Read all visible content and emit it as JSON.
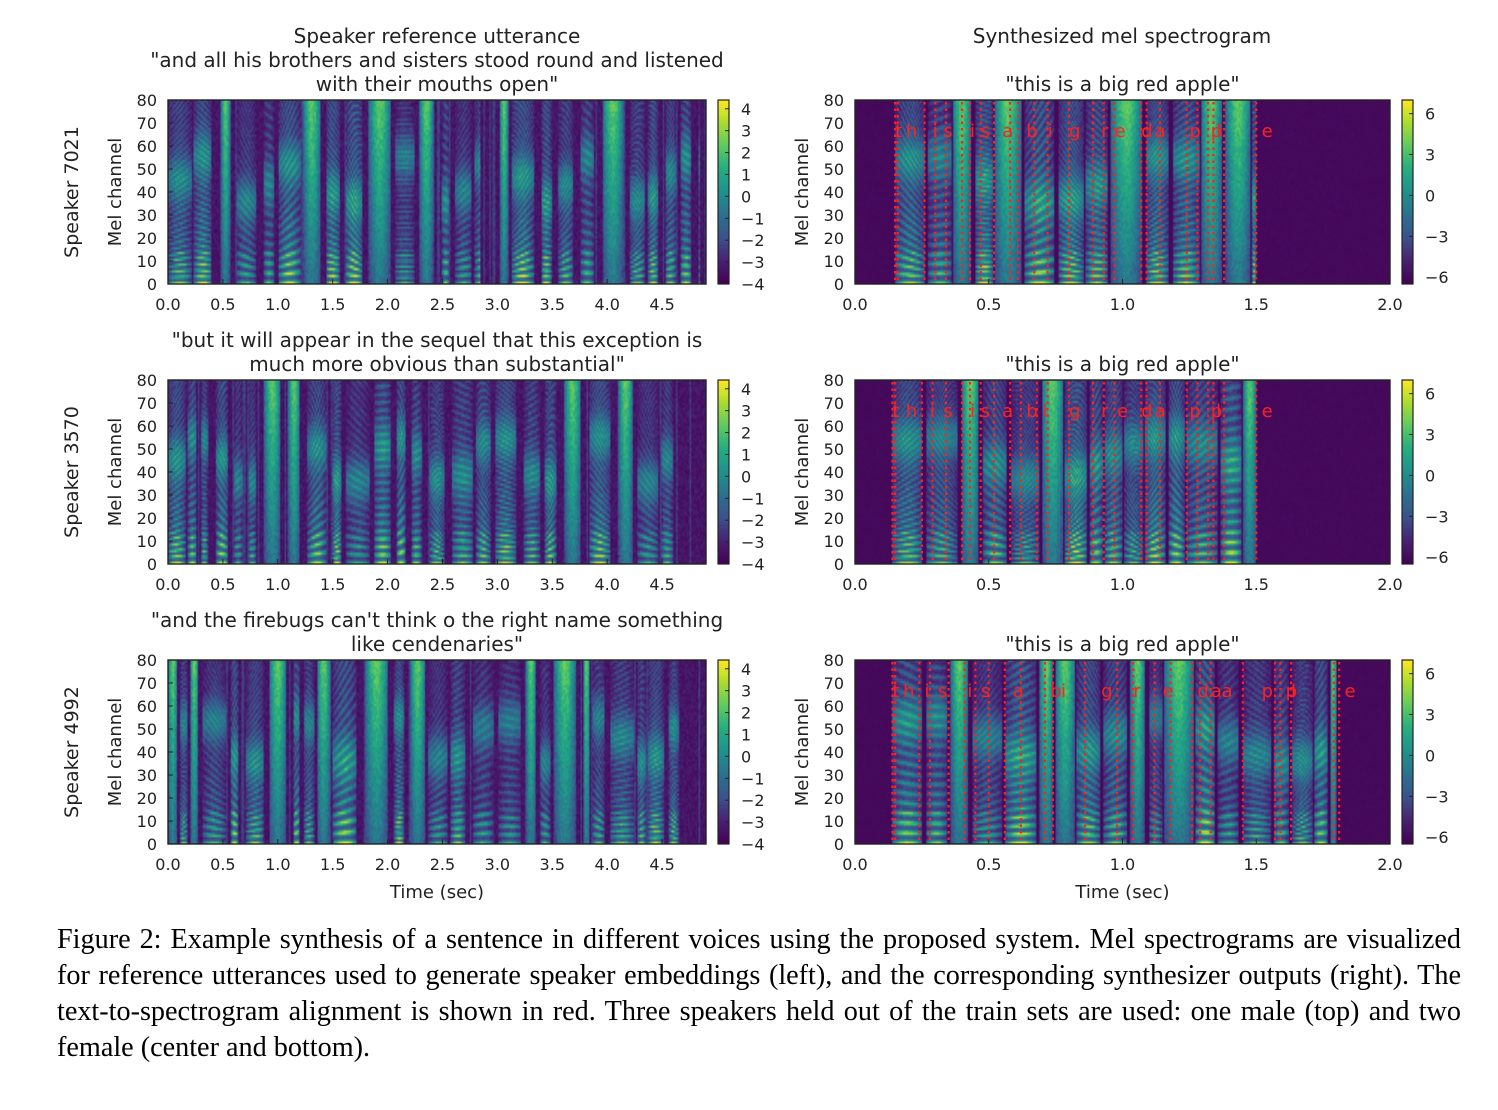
{
  "figure": {
    "left_column_title": "Speaker reference utterance",
    "right_column_title": "Synthesized mel spectrogram",
    "x_axis_label": "Time (sec)",
    "y_axis_label": "Mel channel",
    "caption_label": "Figure 2:",
    "caption_text": "Example synthesis of a sentence in different voices using the proposed system. Mel spectrograms are visualized for reference utterances used to generate speaker embeddings (left), and the corresponding synthesizer outputs (right). The text-to-spectrogram alignment is shown in red. Three speakers held out of the train sets are used: one male (top) and two female (center and bottom)."
  },
  "colors": {
    "viridis_low": "#440154",
    "viridis_mid": "#21918c",
    "viridis_high": "#fde725",
    "alignment": "#ff2020"
  },
  "chart_data": [
    {
      "type": "heatmap",
      "row": 0,
      "column": "reference",
      "speaker": "Speaker 7021",
      "title": "\"and all his brothers and sisters stood round and listened with their mouths open\"",
      "title_lines": [
        "\"and all his brothers and sisters stood round and listened",
        "with their mouths open\""
      ],
      "xlabel": "",
      "ylabel": "Mel channel",
      "xlim": [
        0,
        4.9
      ],
      "ylim": [
        0,
        80
      ],
      "xticks": [
        0.0,
        0.5,
        1.0,
        1.5,
        2.0,
        2.5,
        3.0,
        3.5,
        4.0,
        4.5
      ],
      "yticks": [
        0,
        10,
        20,
        30,
        40,
        50,
        60,
        70,
        80
      ],
      "colorbar_range": [
        -4,
        4.4
      ],
      "colorbar_ticks": [
        4,
        3,
        2,
        1,
        0,
        -1,
        -2,
        -3,
        -4
      ],
      "speech_region": [
        0.0,
        4.85
      ],
      "pauses": [
        [
          2.85,
          2.95
        ]
      ],
      "seed": 7021
    },
    {
      "type": "heatmap",
      "row": 0,
      "column": "synthesized",
      "title": "\"this is a big red apple\"",
      "title_lines": [
        "\"this is a big red apple\""
      ],
      "xlabel": "",
      "ylabel": "Mel channel",
      "xlim": [
        0,
        2.0
      ],
      "ylim": [
        0,
        80
      ],
      "xticks": [
        0.0,
        0.5,
        1.0,
        1.5,
        2.0
      ],
      "yticks": [
        0,
        10,
        20,
        30,
        40,
        50,
        60,
        70,
        80
      ],
      "colorbar_range": [
        -6.5,
        7
      ],
      "colorbar_ticks": [
        6,
        3,
        0,
        -3,
        -6
      ],
      "speech_region": [
        0.15,
        1.5
      ],
      "pauses": [],
      "seed": 1701,
      "alignment_lines": [
        0.15,
        0.16,
        0.26,
        0.3,
        0.34,
        0.4,
        0.43,
        0.47,
        0.52,
        0.58,
        0.61,
        0.67,
        0.72,
        0.8,
        0.89,
        0.93,
        0.97,
        1.07,
        1.09,
        1.14,
        1.24,
        1.28,
        1.32,
        1.34,
        1.38,
        1.5
      ],
      "alignment_labels": [
        {
          "text": "t",
          "t": 0.15
        },
        {
          "text": "h",
          "t": 0.19
        },
        {
          "text": "i",
          "t": 0.29
        },
        {
          "text": "s",
          "t": 0.33
        },
        {
          "text": "i",
          "t": 0.43
        },
        {
          "text": "s",
          "t": 0.47
        },
        {
          "text": "a",
          "t": 0.55
        },
        {
          "text": "b",
          "t": 0.64
        },
        {
          "text": "i",
          "t": 0.72
        },
        {
          "text": "g",
          "t": 0.8
        },
        {
          "text": "r",
          "t": 0.92
        },
        {
          "text": "e",
          "t": 0.97
        },
        {
          "text": "d",
          "t": 1.07
        },
        {
          "text": "a",
          "t": 1.12
        },
        {
          "text": "p",
          "t": 1.25
        },
        {
          "text": "p",
          "t": 1.33
        },
        {
          "text": "l",
          "t": 1.35
        },
        {
          "text": "e",
          "t": 1.52
        }
      ]
    },
    {
      "type": "heatmap",
      "row": 1,
      "column": "reference",
      "speaker": "Speaker 3570",
      "title": "\"but it will appear in the sequel that this exception is much more obvious than substantial\"",
      "title_lines": [
        "\"but it will appear in the sequel that this exception is",
        "much more obvious than substantial\""
      ],
      "xlabel": "",
      "ylabel": "Mel channel",
      "xlim": [
        0,
        4.9
      ],
      "ylim": [
        0,
        80
      ],
      "xticks": [
        0.0,
        0.5,
        1.0,
        1.5,
        2.0,
        2.5,
        3.0,
        3.5,
        4.0,
        4.5
      ],
      "yticks": [
        0,
        10,
        20,
        30,
        40,
        50,
        60,
        70,
        80
      ],
      "colorbar_range": [
        -4,
        4.4
      ],
      "colorbar_ticks": [
        4,
        3,
        2,
        1,
        0,
        -1,
        -2,
        -3,
        -4
      ],
      "speech_region": [
        0.0,
        4.6
      ],
      "pauses": [],
      "seed": 3570
    },
    {
      "type": "heatmap",
      "row": 1,
      "column": "synthesized",
      "title": "\"this is a big red apple\"",
      "title_lines": [
        "\"this is a big red apple\""
      ],
      "xlabel": "",
      "ylabel": "Mel channel",
      "xlim": [
        0,
        2.0
      ],
      "ylim": [
        0,
        80
      ],
      "xticks": [
        0.0,
        0.5,
        1.0,
        1.5,
        2.0
      ],
      "yticks": [
        0,
        10,
        20,
        30,
        40,
        50,
        60,
        70,
        80
      ],
      "colorbar_range": [
        -6.5,
        7
      ],
      "colorbar_ticks": [
        6,
        3,
        0,
        -3,
        -6
      ],
      "speech_region": [
        0.14,
        1.5
      ],
      "pauses": [],
      "seed": 1702,
      "alignment_lines": [
        0.14,
        0.15,
        0.25,
        0.29,
        0.34,
        0.4,
        0.43,
        0.47,
        0.52,
        0.58,
        0.62,
        0.68,
        0.72,
        0.8,
        0.89,
        0.93,
        0.97,
        1.07,
        1.09,
        1.14,
        1.24,
        1.28,
        1.32,
        1.34,
        1.38,
        1.5
      ],
      "alignment_labels": [
        {
          "text": "t",
          "t": 0.14
        },
        {
          "text": "h",
          "t": 0.19
        },
        {
          "text": "i",
          "t": 0.28
        },
        {
          "text": "s",
          "t": 0.33
        },
        {
          "text": "i",
          "t": 0.43
        },
        {
          "text": "s",
          "t": 0.47
        },
        {
          "text": "a",
          "t": 0.55
        },
        {
          "text": "b",
          "t": 0.64
        },
        {
          "text": "i",
          "t": 0.7
        },
        {
          "text": "g",
          "t": 0.8
        },
        {
          "text": "r",
          "t": 0.92
        },
        {
          "text": "e",
          "t": 0.98
        },
        {
          "text": "d",
          "t": 1.07
        },
        {
          "text": "a",
          "t": 1.12
        },
        {
          "text": "p",
          "t": 1.25
        },
        {
          "text": "p",
          "t": 1.33
        },
        {
          "text": "l",
          "t": 1.35
        },
        {
          "text": "e",
          "t": 1.52
        }
      ]
    },
    {
      "type": "heatmap",
      "row": 2,
      "column": "reference",
      "speaker": "Speaker 4992",
      "title": "\"and the firebugs can't think o the right name something like cendenaries\"",
      "title_lines": [
        "\"and the firebugs can't think o the right name something",
        "like cendenaries\""
      ],
      "xlabel": "Time (sec)",
      "ylabel": "Mel channel",
      "xlim": [
        0,
        4.9
      ],
      "ylim": [
        0,
        80
      ],
      "xticks": [
        0.0,
        0.5,
        1.0,
        1.5,
        2.0,
        2.5,
        3.0,
        3.5,
        4.0,
        4.5
      ],
      "yticks": [
        0,
        10,
        20,
        30,
        40,
        50,
        60,
        70,
        80
      ],
      "colorbar_range": [
        -4,
        4.4
      ],
      "colorbar_ticks": [
        4,
        3,
        2,
        1,
        0,
        -1,
        -2,
        -3,
        -4
      ],
      "speech_region": [
        0.0,
        4.65
      ],
      "pauses": [],
      "seed": 4992
    },
    {
      "type": "heatmap",
      "row": 2,
      "column": "synthesized",
      "title": "\"this is a big red apple\"",
      "title_lines": [
        "\"this is a big red apple\""
      ],
      "xlabel": "Time (sec)",
      "ylabel": "Mel channel",
      "xlim": [
        0,
        2.0
      ],
      "ylim": [
        0,
        80
      ],
      "xticks": [
        0.0,
        0.5,
        1.0,
        1.5,
        2.0
      ],
      "yticks": [
        0,
        10,
        20,
        30,
        40,
        50,
        60,
        70,
        80
      ],
      "colorbar_range": [
        -6.5,
        7
      ],
      "colorbar_ticks": [
        6,
        3,
        0,
        -3,
        -6
      ],
      "speech_region": [
        0.14,
        1.8
      ],
      "pauses": [],
      "seed": 1703,
      "alignment_lines": [
        0.14,
        0.15,
        0.24,
        0.28,
        0.35,
        0.41,
        0.45,
        0.5,
        0.56,
        0.62,
        0.71,
        0.74,
        0.86,
        0.98,
        1.04,
        1.12,
        1.18,
        1.26,
        1.29,
        1.33,
        1.45,
        1.57,
        1.59,
        1.63,
        1.79,
        1.81
      ],
      "alignment_labels": [
        {
          "text": "t",
          "t": 0.14
        },
        {
          "text": "h",
          "t": 0.18
        },
        {
          "text": "i",
          "t": 0.26
        },
        {
          "text": "s",
          "t": 0.31
        },
        {
          "text": "i",
          "t": 0.42
        },
        {
          "text": "s",
          "t": 0.47
        },
        {
          "text": "a",
          "t": 0.59
        },
        {
          "text": "b",
          "t": 0.73
        },
        {
          "text": "i",
          "t": 0.77
        },
        {
          "text": "g",
          "t": 0.92
        },
        {
          "text": "r",
          "t": 1.04
        },
        {
          "text": "e",
          "t": 1.15
        },
        {
          "text": "d",
          "t": 1.28
        },
        {
          "text": "a",
          "t": 1.33
        },
        {
          "text": "a",
          "t": 1.37
        },
        {
          "text": "p",
          "t": 1.52
        },
        {
          "text": "p",
          "t": 1.61
        },
        {
          "text": "l",
          "t": 1.63
        },
        {
          "text": "e",
          "t": 1.83
        }
      ]
    }
  ]
}
